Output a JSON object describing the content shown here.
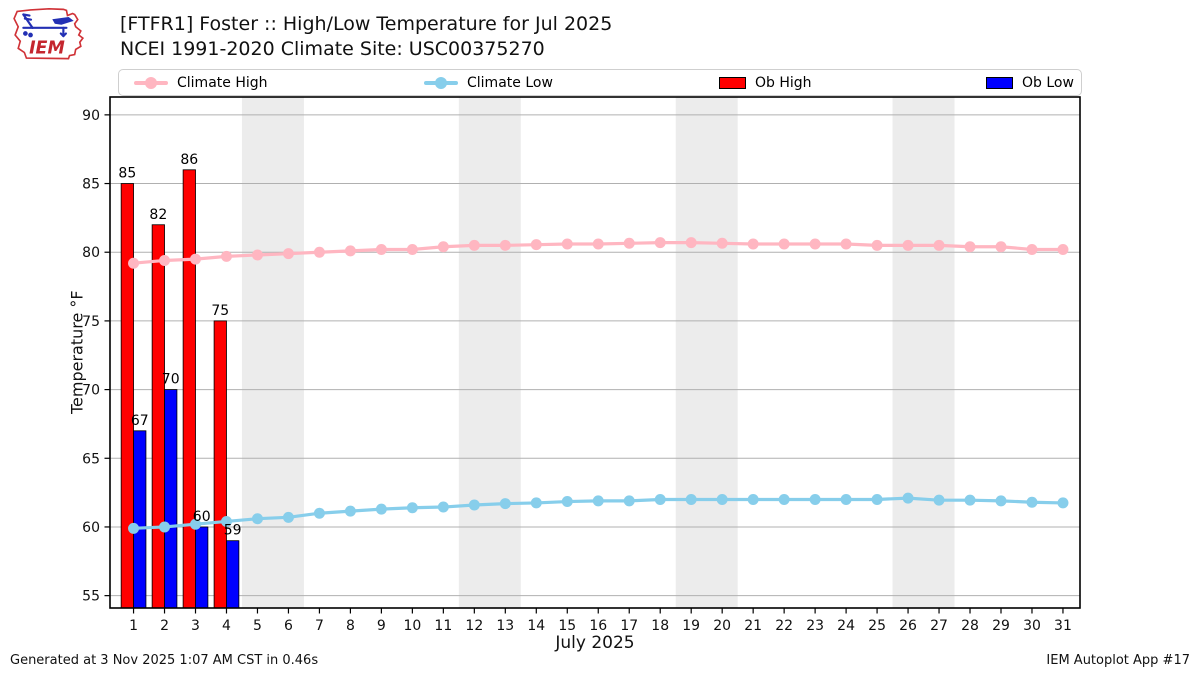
{
  "header": {
    "title_line1": "[FTFR1] Foster :: High/Low Temperature for Jul 2025",
    "title_line2": "NCEI 1991-2020 Climate Site: USC00375270",
    "logo_text": "IEM"
  },
  "legend": {
    "items": [
      {
        "label": "Climate High",
        "type": "line",
        "color": "#ffb6c1"
      },
      {
        "label": "Climate Low",
        "type": "line",
        "color": "#87ceeb"
      },
      {
        "label": "Ob High",
        "type": "patch",
        "color": "#ff0000"
      },
      {
        "label": "Ob Low",
        "type": "patch",
        "color": "#0000ff"
      }
    ]
  },
  "footer": {
    "left": "Generated at 3 Nov 2025 1:07 AM CST in 0.46s",
    "right": "IEM Autoplot App #17"
  },
  "chart_data": {
    "type": "bar",
    "title": "[FTFR1] Foster :: High/Low Temperature for Jul 2025",
    "subtitle": "NCEI 1991-2020 Climate Site: USC00375270",
    "xlabel": "July 2025",
    "ylabel": "Temperature °F",
    "x": [
      1,
      2,
      3,
      4,
      5,
      6,
      7,
      8,
      9,
      10,
      11,
      12,
      13,
      14,
      15,
      16,
      17,
      18,
      19,
      20,
      21,
      22,
      23,
      24,
      25,
      26,
      27,
      28,
      29,
      30,
      31
    ],
    "xticks": [
      1,
      2,
      3,
      4,
      5,
      6,
      7,
      8,
      9,
      10,
      11,
      12,
      13,
      14,
      15,
      16,
      17,
      18,
      19,
      20,
      21,
      22,
      23,
      24,
      25,
      26,
      27,
      28,
      29,
      30,
      31
    ],
    "yticks": [
      55,
      60,
      65,
      70,
      75,
      80,
      85,
      90
    ],
    "xlim": [
      0.24,
      31.55
    ],
    "ylim": [
      54.1,
      91.3
    ],
    "grid": true,
    "grid_color": "#b0b0b0",
    "band_color": "#ececec",
    "weekend_bands": [
      [
        4.5,
        6.5
      ],
      [
        11.5,
        13.5
      ],
      [
        18.5,
        20.5
      ],
      [
        25.5,
        27.5
      ]
    ],
    "legend_position": "top",
    "series": [
      {
        "name": "Ob High",
        "type": "bar",
        "color": "#ff0000",
        "offset": -0.4,
        "bar_width": 0.4,
        "labeled": true,
        "values": [
          85,
          82,
          86,
          75,
          null,
          null,
          null,
          null,
          null,
          null,
          null,
          null,
          null,
          null,
          null,
          null,
          null,
          null,
          null,
          null,
          null,
          null,
          null,
          null,
          null,
          null,
          null,
          null,
          null,
          null,
          null
        ]
      },
      {
        "name": "Ob Low",
        "type": "bar",
        "color": "#0000ff",
        "offset": 0.0,
        "bar_width": 0.4,
        "labeled": true,
        "values": [
          67,
          70,
          60,
          59,
          null,
          null,
          null,
          null,
          null,
          null,
          null,
          null,
          null,
          null,
          null,
          null,
          null,
          null,
          null,
          null,
          null,
          null,
          null,
          null,
          null,
          null,
          null,
          null,
          null,
          null,
          null
        ]
      },
      {
        "name": "Climate High",
        "type": "line",
        "color": "#ffb6c1",
        "values": [
          79.2,
          79.4,
          79.5,
          79.7,
          79.8,
          79.9,
          80.0,
          80.1,
          80.2,
          80.2,
          80.4,
          80.5,
          80.5,
          80.55,
          80.6,
          80.6,
          80.65,
          80.7,
          80.7,
          80.65,
          80.6,
          80.6,
          80.6,
          80.6,
          80.5,
          80.5,
          80.5,
          80.4,
          80.4,
          80.2,
          80.2
        ]
      },
      {
        "name": "Climate Low",
        "type": "line",
        "color": "#87ceeb",
        "values": [
          59.9,
          60.0,
          60.2,
          60.4,
          60.6,
          60.7,
          61.0,
          61.15,
          61.3,
          61.4,
          61.45,
          61.6,
          61.7,
          61.75,
          61.85,
          61.9,
          61.9,
          62.0,
          62.0,
          62.0,
          62.0,
          62.0,
          62.0,
          62.0,
          62.0,
          62.1,
          61.95,
          61.95,
          61.9,
          61.8,
          61.75
        ]
      }
    ]
  }
}
